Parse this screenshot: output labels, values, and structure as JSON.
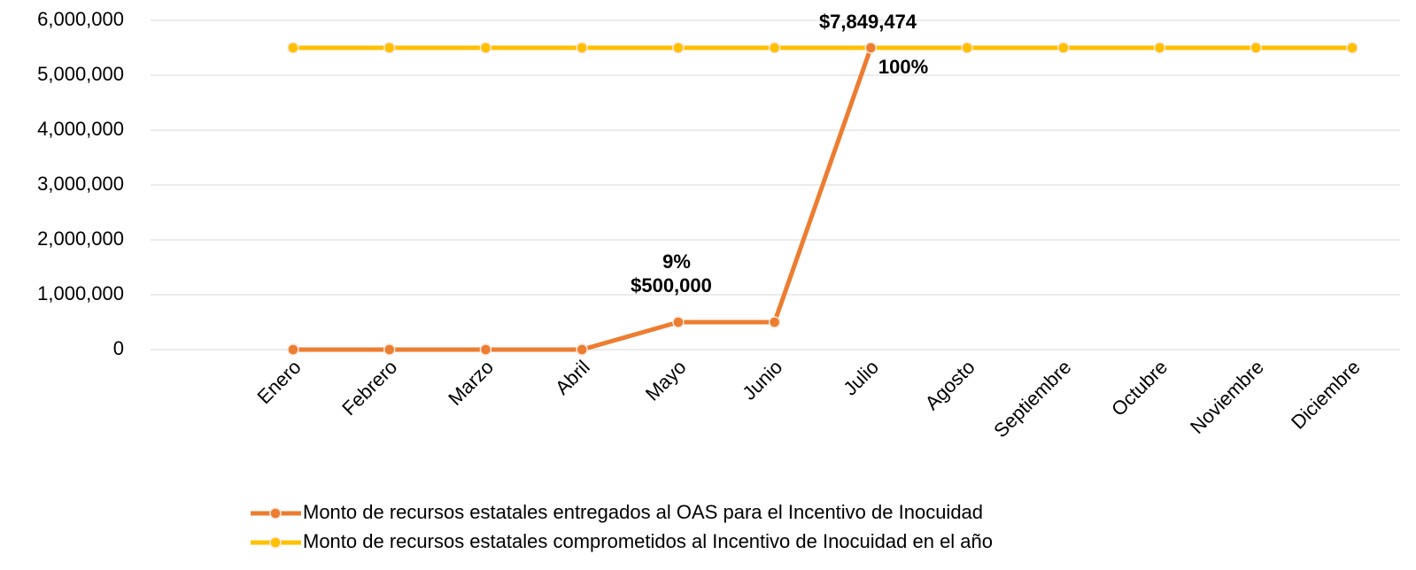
{
  "chart_data": {
    "type": "line",
    "categories": [
      "Enero",
      "Febrero",
      "Marzo",
      "Abril",
      "Mayo",
      "Junio",
      "Julio",
      "Agosto",
      "Septiembre",
      "Octubre",
      "Noviembre",
      "Diciembre"
    ],
    "series": [
      {
        "name": "Monto de recursos estatales entregados al OAS para el Incentivo de Inocuidad",
        "color": "#ED7D31",
        "values": [
          0,
          0,
          0,
          0,
          500000,
          500000,
          5500000,
          null,
          null,
          null,
          null,
          null
        ]
      },
      {
        "name": "Monto de recursos estatales comprometidos al Incentivo de Inocuidad en el año",
        "color": "#FFC000",
        "values": [
          5500000,
          5500000,
          5500000,
          5500000,
          5500000,
          5500000,
          5500000,
          5500000,
          5500000,
          5500000,
          5500000,
          5500000
        ]
      }
    ],
    "annotations": [
      "9%",
      "$500,000",
      "$7,849,474",
      "100%"
    ],
    "ylim": [
      0,
      6000000
    ],
    "yticks": [
      0,
      {
        "value": 1000000,
        "label": "1,000,000"
      },
      {
        "value": 2000000,
        "label": "2,000,000"
      },
      {
        "value": 3000000,
        "label": "3,000,000"
      },
      {
        "value": 4000000,
        "label": "4,000,000"
      },
      {
        "value": 5000000,
        "label": "5,000,000"
      },
      {
        "value": 6000000,
        "label": "6,000,000"
      }
    ],
    "grid": true,
    "legend": "bottom"
  }
}
